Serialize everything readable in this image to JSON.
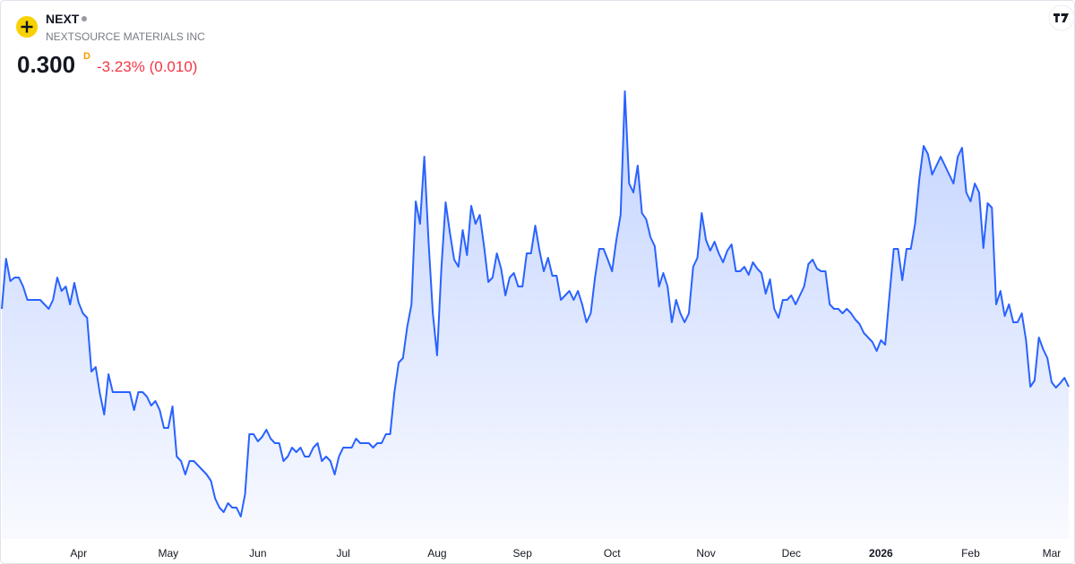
{
  "header": {
    "symbol": "NEXT",
    "name": "NEXTSOURCE MATERIALS INC",
    "price": "0.300",
    "interval": "D",
    "change": "-3.23% (0.010)"
  },
  "chart_data": {
    "type": "area",
    "color": "#2962ff",
    "values": [
      0.387,
      0.443,
      0.418,
      0.422,
      0.422,
      0.412,
      0.397,
      0.397,
      0.397,
      0.397,
      0.392,
      0.387,
      0.397,
      0.422,
      0.407,
      0.412,
      0.392,
      0.416,
      0.394,
      0.382,
      0.377,
      0.317,
      0.322,
      0.292,
      0.269,
      0.314,
      0.294,
      0.294,
      0.294,
      0.294,
      0.294,
      0.274,
      0.294,
      0.294,
      0.289,
      0.279,
      0.284,
      0.274,
      0.254,
      0.254,
      0.278,
      0.222,
      0.217,
      0.202,
      0.217,
      0.217,
      0.212,
      0.207,
      0.202,
      0.195,
      0.175,
      0.165,
      0.16,
      0.17,
      0.165,
      0.165,
      0.155,
      0.18,
      0.247,
      0.247,
      0.239,
      0.244,
      0.252,
      0.242,
      0.237,
      0.237,
      0.217,
      0.222,
      0.232,
      0.227,
      0.232,
      0.222,
      0.222,
      0.232,
      0.237,
      0.217,
      0.222,
      0.217,
      0.202,
      0.222,
      0.232,
      0.232,
      0.232,
      0.242,
      0.237,
      0.237,
      0.237,
      0.232,
      0.237,
      0.237,
      0.247,
      0.247,
      0.294,
      0.327,
      0.332,
      0.367,
      0.392,
      0.507,
      0.482,
      0.557,
      0.462,
      0.382,
      0.335,
      0.432,
      0.506,
      0.472,
      0.442,
      0.434,
      0.475,
      0.447,
      0.502,
      0.482,
      0.492,
      0.457,
      0.417,
      0.422,
      0.449,
      0.432,
      0.402,
      0.422,
      0.427,
      0.412,
      0.412,
      0.449,
      0.449,
      0.48,
      0.452,
      0.429,
      0.444,
      0.424,
      0.424,
      0.397,
      0.402,
      0.407,
      0.397,
      0.407,
      0.392,
      0.372,
      0.382,
      0.422,
      0.454,
      0.454,
      0.442,
      0.429,
      0.464,
      0.492,
      0.63,
      0.527,
      0.517,
      0.547,
      0.494,
      0.487,
      0.467,
      0.457,
      0.412,
      0.427,
      0.412,
      0.372,
      0.397,
      0.382,
      0.372,
      0.382,
      0.434,
      0.444,
      0.494,
      0.464,
      0.452,
      0.462,
      0.449,
      0.439,
      0.452,
      0.459,
      0.429,
      0.429,
      0.434,
      0.425,
      0.439,
      0.432,
      0.427,
      0.404,
      0.42,
      0.387,
      0.377,
      0.397,
      0.397,
      0.402,
      0.392,
      0.402,
      0.412,
      0.437,
      0.442,
      0.432,
      0.429,
      0.429,
      0.392,
      0.387,
      0.387,
      0.382,
      0.387,
      0.382,
      0.375,
      0.37,
      0.36,
      0.355,
      0.35,
      0.34,
      0.352,
      0.347,
      0.402,
      0.454,
      0.454,
      0.419,
      0.454,
      0.454,
      0.482,
      0.532,
      0.569,
      0.56,
      0.537,
      0.547,
      0.557,
      0.547,
      0.537,
      0.527,
      0.557,
      0.567,
      0.517,
      0.507,
      0.527,
      0.517,
      0.455,
      0.505,
      0.5,
      0.392,
      0.407,
      0.379,
      0.392,
      0.372,
      0.372,
      0.382,
      0.352,
      0.3,
      0.307,
      0.355,
      0.342,
      0.332,
      0.305,
      0.299,
      0.304,
      0.31,
      0.3
    ],
    "xlim": [
      0,
      250
    ],
    "ylim": [
      0.13,
      0.63
    ],
    "xticks": [
      {
        "value": 18,
        "label": "Apr"
      },
      {
        "value": 39,
        "label": "May"
      },
      {
        "value": 60,
        "label": "Jun"
      },
      {
        "value": 80,
        "label": "Jul"
      },
      {
        "value": 102,
        "label": "Aug"
      },
      {
        "value": 122,
        "label": "Sep"
      },
      {
        "value": 143,
        "label": "Oct"
      },
      {
        "value": 165,
        "label": "Nov"
      },
      {
        "value": 185,
        "label": "Dec"
      },
      {
        "value": 206,
        "label": "2026",
        "bold": true
      },
      {
        "value": 227,
        "label": "Feb"
      },
      {
        "value": 246,
        "label": "Mar"
      }
    ]
  }
}
